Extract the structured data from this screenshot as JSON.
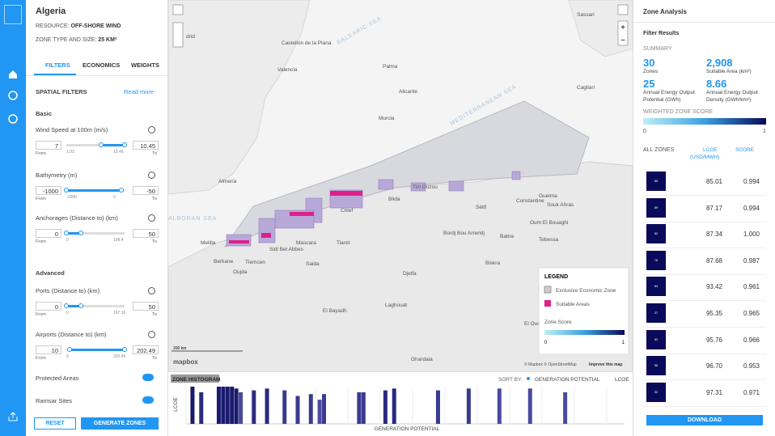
{
  "left_panel": {
    "country": "Algeria",
    "resource_label": "RESOURCE:",
    "resource": "OFF-SHORE WIND",
    "zone_label": "ZONE TYPE AND SIZE:",
    "zone_size": "25 KM²",
    "tabs": [
      "FILTERS",
      "ECONOMICS",
      "WEIGHTS"
    ],
    "spatial_filters": "SPATIAL FILTERS",
    "read_more": "Read more",
    "basic": "Basic",
    "advanced": "Advanced",
    "from_label": "From",
    "to_label": "To",
    "filters": [
      {
        "name": "Wind Speed at 100m (m/s)",
        "from": 7,
        "to": 10.45,
        "min": 1.93,
        "max": 10.45
      },
      {
        "name": "Bathymetry (m)",
        "from": -1000,
        "to": -50,
        "min": -1000,
        "max": 0
      },
      {
        "name": "Anchorages (Distance to) (km)",
        "from": 0,
        "to": 50,
        "min": 0,
        "max": 198.4
      },
      {
        "name": "Ports (Distance to) (km)",
        "from": 0,
        "to": 50,
        "min": 0,
        "max": 197.16
      },
      {
        "name": "Airports (Distance to) (km)",
        "from": 10,
        "to": 202.49,
        "min": 0,
        "max": 202.49
      }
    ],
    "toggles": [
      "Protected Areas",
      "Ramsar Sites"
    ],
    "reset": "RESET",
    "generate": "GENERATE ZONES"
  },
  "map": {
    "labels": [
      "BALEARIC SEA",
      "MEDITERRANEAN SEA",
      "ALBORAN SEA",
      "Castellón de la Plana",
      "Valencia",
      "Palma",
      "Alicante",
      "Murcia",
      "Almería",
      "Sassari",
      "Cagliari",
      "Melilla",
      "Berkane",
      "Oujda",
      "Tlemcen",
      "Sidi Bel Abbes",
      "Mascara",
      "Saida",
      "Tiaret",
      "Chlef",
      "Blida",
      "Tizi Ouzou",
      "Bordj Bou Arreridj",
      "Sétif",
      "Constantine",
      "Guelma",
      "Souk Ahras",
      "Oum El Bouaghi",
      "Batna",
      "Tebessa",
      "Biskra",
      "Djelfa",
      "El Bayadh",
      "Laghouat",
      "El Oued",
      "Ghardaia",
      "drid"
    ],
    "legend": {
      "title": "LEGEND",
      "items": [
        "Exclusive Economic Zone",
        "Suitable Areas"
      ],
      "score_title": "Zone Score",
      "score_min": 0,
      "score_max": 1
    },
    "scale": "200 km",
    "logo": "mapbox",
    "attribution": "© Mapbox © OpenStreetMap",
    "improve": "Improve this map"
  },
  "histogram": {
    "title": "ZONE HISTOGRAM",
    "sort_by": "SORT BY:",
    "sort_option": "GENERATION POTENTIAL",
    "sort_alt": "LCOE",
    "y_label": "LCOE",
    "x_label": "GENERATION POTENTIAL",
    "xlim": [
      0,
      1
    ],
    "ylim": [
      0,
      1
    ],
    "x": [
      0.01,
      0.03,
      0.07,
      0.08,
      0.09,
      0.1,
      0.11,
      0.12,
      0.15,
      0.18,
      0.22,
      0.25,
      0.28,
      0.3,
      0.31,
      0.39,
      0.4,
      0.45,
      0.47,
      0.57,
      0.64,
      0.71,
      0.78,
      0.86
    ],
    "values": [
      1,
      0.85,
      1,
      1,
      1,
      1,
      0.95,
      0.85,
      0.9,
      0.95,
      0.9,
      0.75,
      0.8,
      0.65,
      0.8,
      0.85,
      0.85,
      0.9,
      0.95,
      0.9,
      0.95,
      0.95,
      0.95,
      0.85
    ],
    "colors": [
      "#1a1a6e",
      "#2a2a80",
      "#1a1a6e",
      "#1a1a6e",
      "#1a1a6e",
      "#1a1a6e",
      "#1a1a6e",
      "#4a4a9a",
      "#2a2a80",
      "#2a2a80",
      "#3a3a90",
      "#3a3a90",
      "#3a3a90",
      "#4a4aa0",
      "#3a3a90",
      "#3a3a90",
      "#3a3a90",
      "#2a2a80",
      "#2a2a80",
      "#3a3a90",
      "#3a3a90",
      "#4a4aa0",
      "#4a4aa0",
      "#4a4aa0"
    ]
  },
  "right_panel": {
    "title": "Zone Analysis",
    "filter_results": "Filter Results",
    "summary": "SUMMARY",
    "stats": [
      {
        "value": "30",
        "label": "Zones"
      },
      {
        "value": "2,908",
        "label": "Suitable Area (km²)"
      },
      {
        "value": "25",
        "label": "Annual Energy Output Potential (GWh)"
      },
      {
        "value": "8.66",
        "label": "Annual Energy Output Density (GWh/km²)"
      }
    ],
    "weighted_score": "WEIGHTED ZONE SCORE",
    "score_min": 0,
    "score_max": 1,
    "all_zones": "ALL ZONES",
    "lcoe": "LCOE",
    "lcoe_unit": "(USD/MWH)",
    "score": "SCORE",
    "rows": [
      [
        "85",
        "85.01",
        "0.994"
      ],
      [
        "89",
        "87.17",
        "0.994"
      ],
      [
        "82",
        "87.34",
        "1.000"
      ],
      [
        "76",
        "87.68",
        "0.987"
      ],
      [
        "64",
        "93.42",
        "0.961"
      ],
      [
        "27",
        "95.35",
        "0.965"
      ],
      [
        "62",
        "95.76",
        "0.966"
      ],
      [
        "58",
        "96.70",
        "0.953"
      ],
      [
        "32",
        "97.31",
        "0.971"
      ]
    ],
    "download": "DOWNLOAD"
  }
}
